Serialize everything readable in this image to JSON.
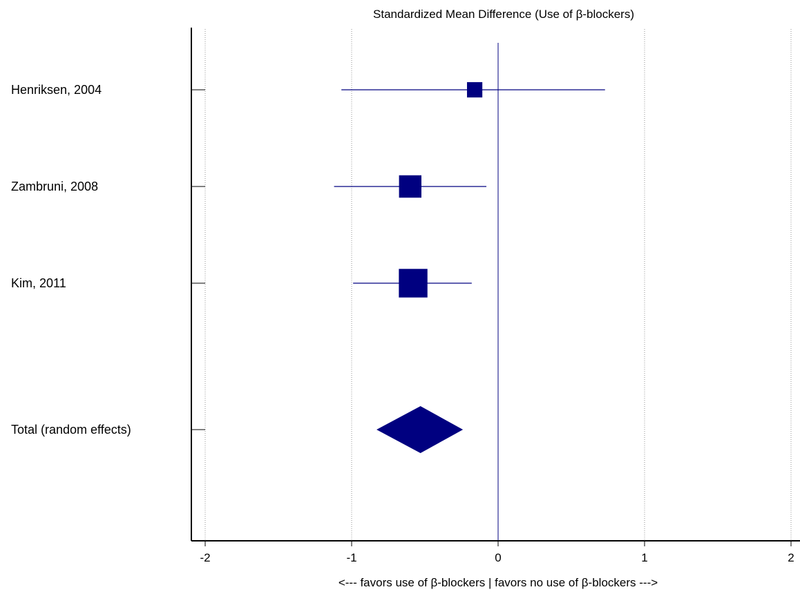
{
  "chart_data": {
    "type": "forest",
    "title": "Standardized Mean Difference (Use of β-blockers)",
    "xlabel": "<--- favors use of β-blockers | favors no use of β-blockers --->",
    "xlim": [
      -2.1,
      2.1
    ],
    "x_ticks": [
      -2,
      -1,
      0,
      1,
      2
    ],
    "x_tick_labels": [
      "-2",
      "-1",
      "0",
      "1",
      "2"
    ],
    "vertical_gridlines": true,
    "reference_line": 0,
    "studies": [
      {
        "label": "Henriksen, 2004",
        "estimate": -0.16,
        "ci_lower": -1.07,
        "ci_upper": 0.73,
        "weight": 0.17
      },
      {
        "label": "Zambruni, 2008",
        "estimate": -0.6,
        "ci_lower": -1.12,
        "ci_upper": -0.08,
        "weight": 0.34
      },
      {
        "label": "Kim, 2011",
        "estimate": -0.58,
        "ci_lower": -0.99,
        "ci_upper": -0.18,
        "weight": 0.49
      }
    ],
    "total": {
      "label": "Total (random effects)",
      "estimate": -0.53,
      "ci_lower": -0.83,
      "ci_upper": -0.24
    },
    "colors": {
      "marker": "#000080",
      "reference_line": "#000080",
      "axis": "#000000",
      "grid": "#909090",
      "text": "#000000"
    }
  }
}
